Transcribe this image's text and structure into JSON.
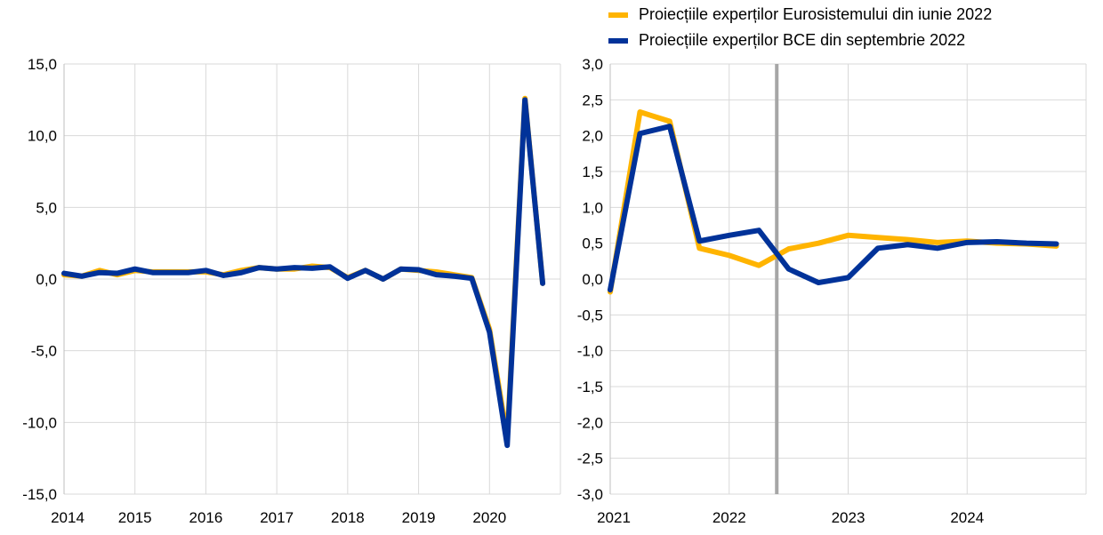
{
  "legend": [
    {
      "label": "Proiecțiile experților Eurosistemului din iunie 2022",
      "color": "#FFB400"
    },
    {
      "label": "Proiecțiile experților BCE din septembrie 2022",
      "color": "#003299"
    }
  ],
  "chart_data": [
    {
      "type": "line",
      "xlim": [
        2014,
        2021
      ],
      "ylim": [
        -15,
        15
      ],
      "yticks": [
        "15,0",
        "10,0",
        "5,0",
        "0,0",
        "-5,0",
        "-10,0",
        "-15,0"
      ],
      "ytick_values": [
        15,
        10,
        5,
        0,
        -5,
        -10,
        -15
      ],
      "xticks": [
        "2014",
        "2015",
        "2016",
        "2017",
        "2018",
        "2019",
        "2020"
      ],
      "grid": true,
      "x_start": "2014Q1",
      "frequency": "quarterly",
      "series": [
        {
          "legend_index": 0,
          "color": "#FFB400",
          "values": [
            0.3,
            0.2,
            0.6,
            0.3,
            0.6,
            0.5,
            0.5,
            0.5,
            0.5,
            0.3,
            0.6,
            0.8,
            0.7,
            0.7,
            0.9,
            0.8,
            0.1,
            0.6,
            0.0,
            0.7,
            0.6,
            0.5,
            0.3,
            0.1,
            -3.5,
            -11.1,
            12.6,
            -0.3
          ]
        },
        {
          "legend_index": 1,
          "color": "#003299",
          "values": [
            0.4,
            0.2,
            0.45,
            0.4,
            0.7,
            0.45,
            0.45,
            0.45,
            0.6,
            0.25,
            0.45,
            0.8,
            0.7,
            0.8,
            0.75,
            0.85,
            0.05,
            0.6,
            0.0,
            0.7,
            0.65,
            0.3,
            0.2,
            0.05,
            -3.7,
            -11.6,
            12.5,
            -0.3
          ]
        }
      ]
    },
    {
      "type": "line",
      "xlim": [
        2021,
        2025
      ],
      "ylim": [
        -3,
        3
      ],
      "yticks": [
        "3,0",
        "2,5",
        "2,0",
        "1,5",
        "1,0",
        "0,5",
        "0,0",
        "-0,5",
        "-1,0",
        "-1,5",
        "-2,0",
        "-2,5",
        "-3,0"
      ],
      "ytick_values": [
        3,
        2.5,
        2,
        1.5,
        1,
        0.5,
        0,
        -0.5,
        -1,
        -1.5,
        -2,
        -2.5,
        -3
      ],
      "xticks": [
        "2021",
        "2022",
        "2023",
        "2024"
      ],
      "grid": true,
      "x_start": "2021Q1",
      "frequency": "quarterly",
      "vertical_marker": 2022.4,
      "series": [
        {
          "legend_index": 0,
          "color": "#FFB400",
          "values": [
            -0.18,
            2.33,
            2.2,
            0.43,
            0.33,
            0.19,
            0.42,
            0.5,
            0.61,
            0.58,
            0.55,
            0.51,
            0.53,
            0.5,
            0.49,
            0.46
          ]
        },
        {
          "legend_index": 1,
          "color": "#003299",
          "values": [
            -0.15,
            2.03,
            2.13,
            0.53,
            0.61,
            0.68,
            0.14,
            -0.05,
            0.02,
            0.43,
            0.48,
            0.43,
            0.51,
            0.52,
            0.5,
            0.49
          ]
        }
      ]
    }
  ]
}
